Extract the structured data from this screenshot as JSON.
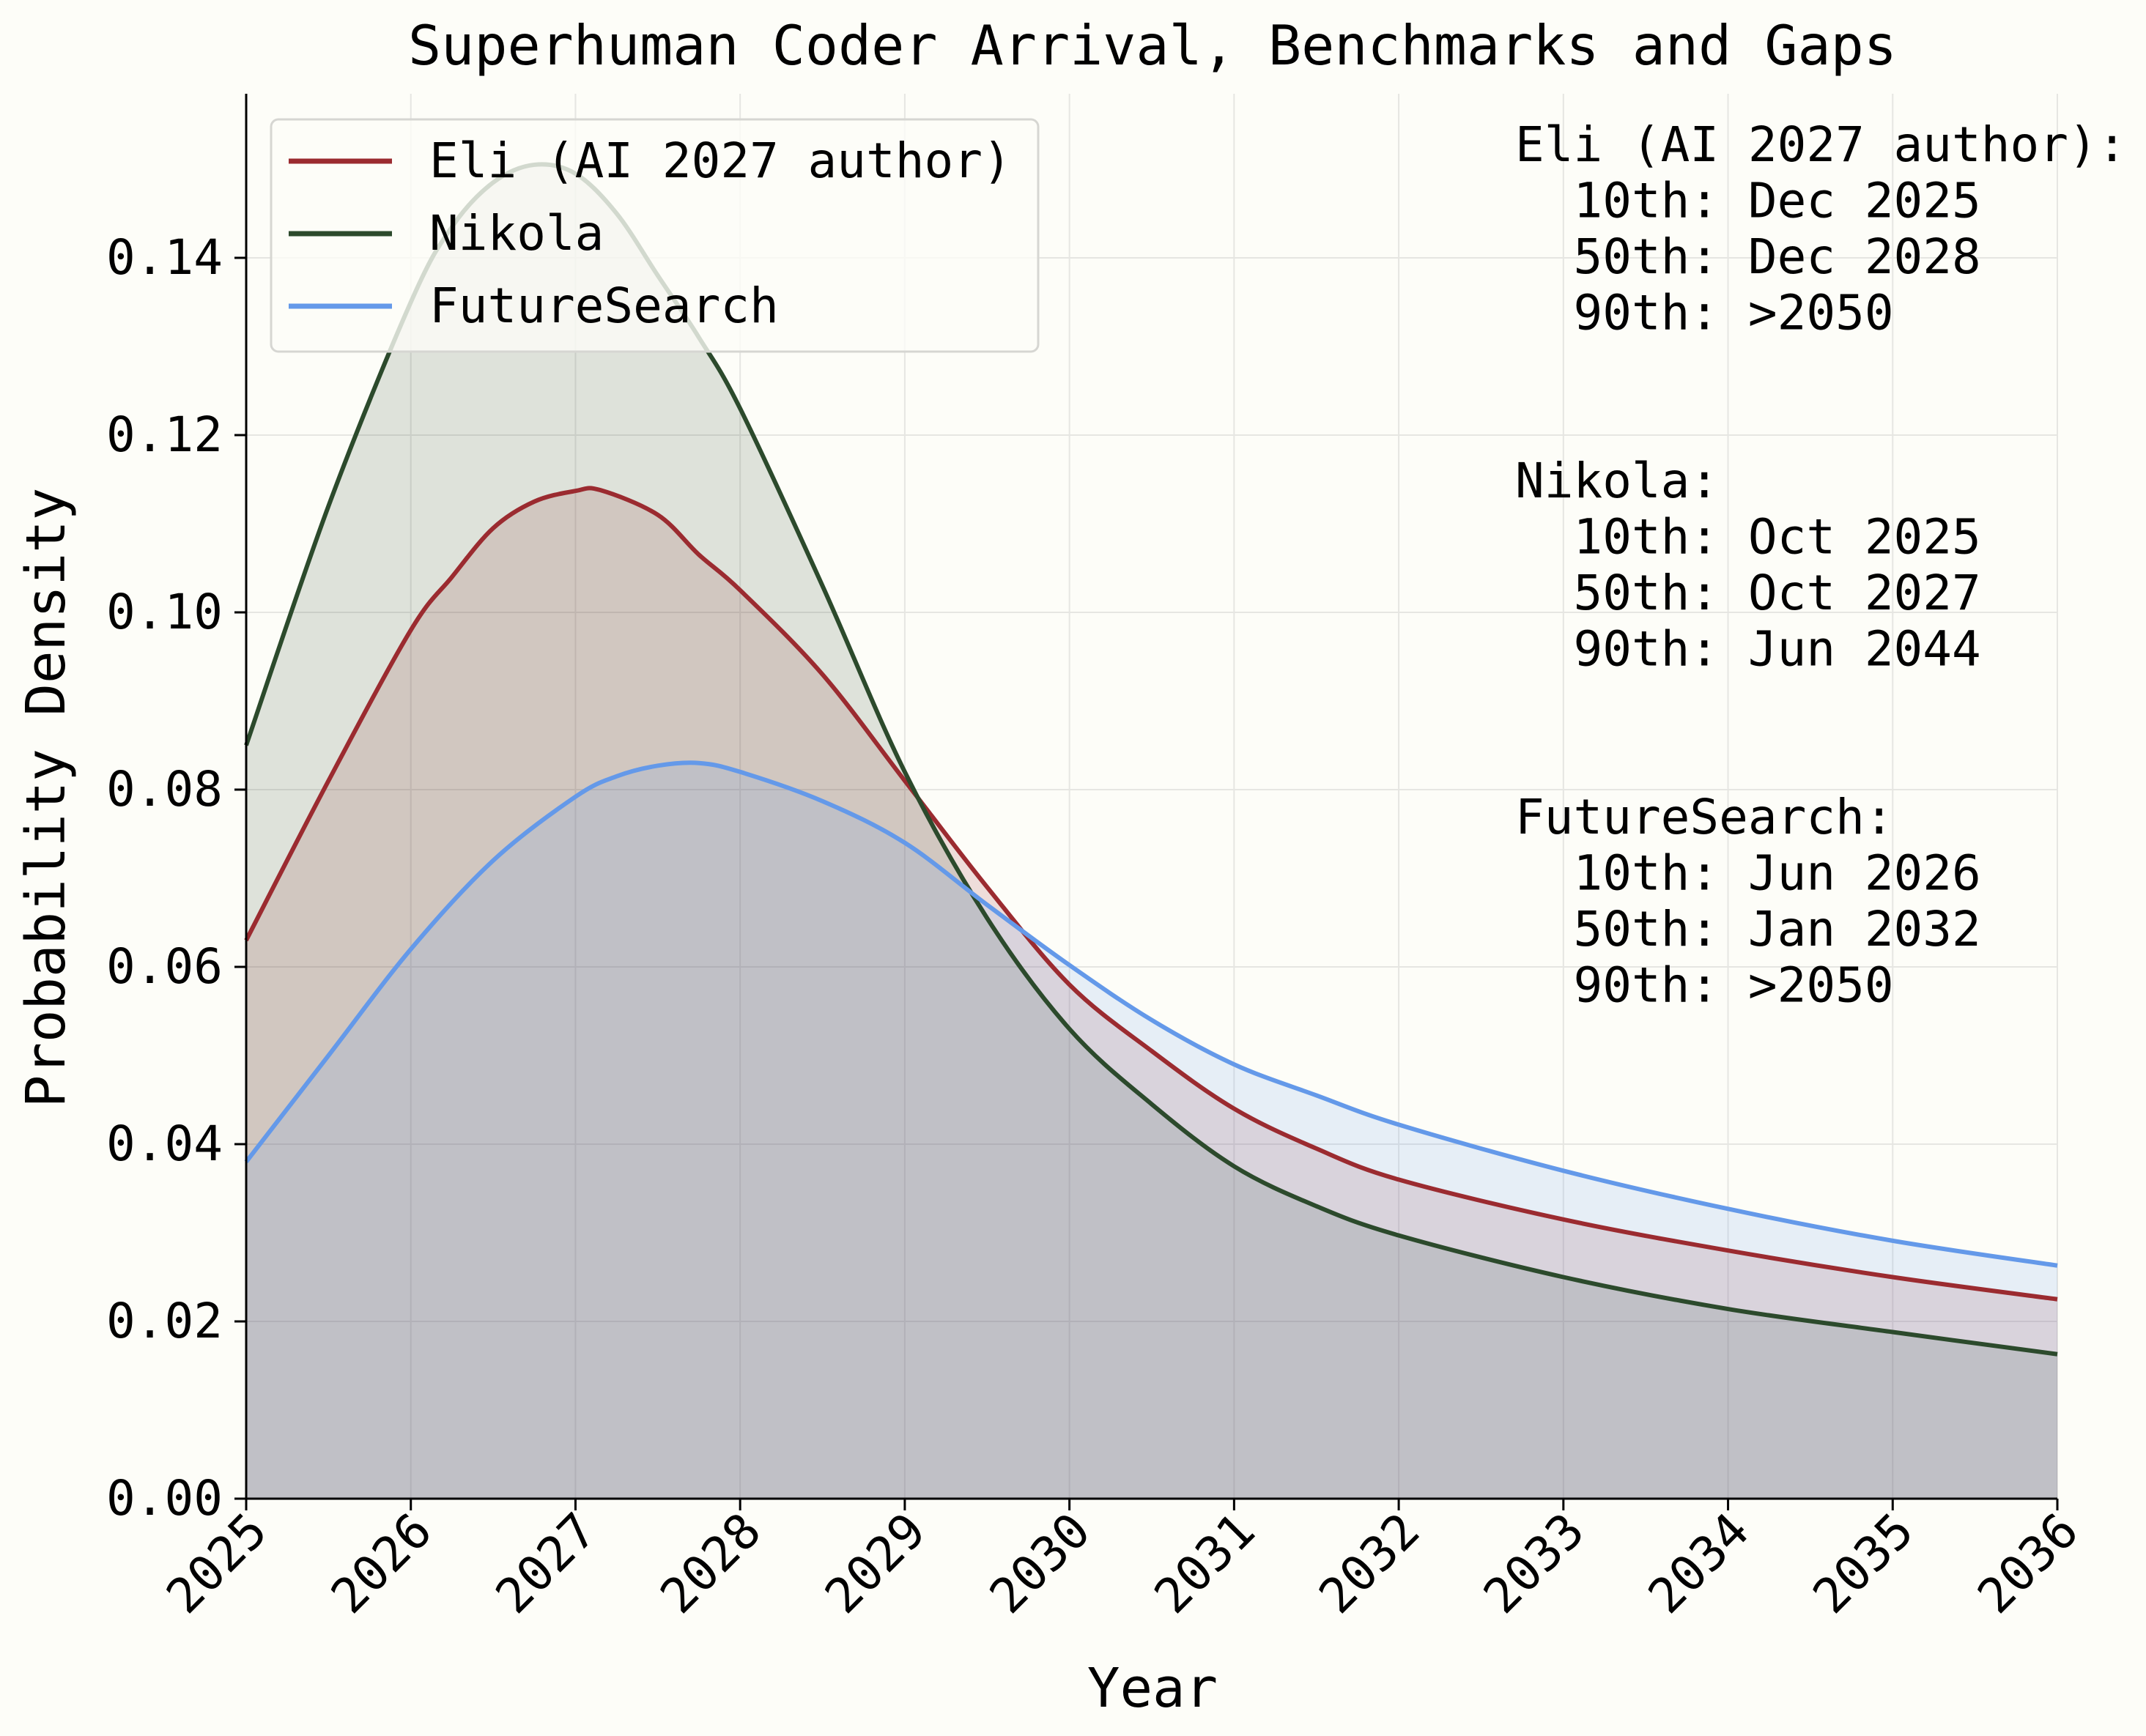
{
  "chart_data": {
    "type": "area",
    "title": "Superhuman Coder Arrival, Benchmarks and Gaps",
    "xlabel": "Year",
    "ylabel": "Probability Density",
    "xlim": [
      2025,
      2036
    ],
    "ylim": [
      0,
      0.158
    ],
    "xticks": [
      "2025",
      "2026",
      "2027",
      "2028",
      "2029",
      "2030",
      "2031",
      "2032",
      "2033",
      "2034",
      "2035",
      "2036"
    ],
    "yticks": [
      "0.00",
      "0.02",
      "0.04",
      "0.06",
      "0.08",
      "0.10",
      "0.12",
      "0.14"
    ],
    "grid": true,
    "legend_position": "top-left",
    "background": "#fdfdf8",
    "series": [
      {
        "name": "Eli (AI 2027 author)",
        "color": "#9b2b30",
        "x": [
          2025,
          2025.5,
          2026,
          2026.25,
          2026.5,
          2026.75,
          2027,
          2027.15,
          2027.5,
          2027.75,
          2028,
          2028.5,
          2029,
          2029.5,
          2030,
          2030.5,
          2031,
          2031.5,
          2032,
          2033,
          2034,
          2035,
          2036
        ],
        "y": [
          0.063,
          0.081,
          0.098,
          0.104,
          0.1095,
          0.1125,
          0.1137,
          0.1138,
          0.111,
          0.1065,
          0.1025,
          0.093,
          0.081,
          0.069,
          0.058,
          0.0505,
          0.044,
          0.0395,
          0.036,
          0.0315,
          0.028,
          0.025,
          0.0225
        ]
      },
      {
        "name": "Nikola",
        "color": "#2c4a2c",
        "x": [
          2025,
          2025.5,
          2026,
          2026.25,
          2026.5,
          2026.75,
          2027,
          2027.25,
          2027.5,
          2027.75,
          2028,
          2028.5,
          2029,
          2029.5,
          2030,
          2030.5,
          2031,
          2031.5,
          2032,
          2033,
          2034,
          2035,
          2036
        ],
        "y": [
          0.085,
          0.112,
          0.135,
          0.1435,
          0.1485,
          0.1505,
          0.1495,
          0.145,
          0.138,
          0.131,
          0.123,
          0.103,
          0.082,
          0.0655,
          0.053,
          0.0445,
          0.0375,
          0.033,
          0.0297,
          0.025,
          0.0214,
          0.0188,
          0.0163
        ]
      },
      {
        "name": "FutureSearch",
        "color": "#6499e9",
        "x": [
          2025,
          2025.5,
          2026,
          2026.5,
          2027,
          2027.25,
          2027.5,
          2027.75,
          2028,
          2028.5,
          2029,
          2029.5,
          2030,
          2030.5,
          2031,
          2031.5,
          2032,
          2033,
          2034,
          2035,
          2036
        ],
        "y": [
          0.038,
          0.05,
          0.062,
          0.072,
          0.0792,
          0.0815,
          0.0827,
          0.083,
          0.082,
          0.0787,
          0.074,
          0.067,
          0.0602,
          0.054,
          0.049,
          0.0455,
          0.0422,
          0.037,
          0.0327,
          0.0291,
          0.0263
        ]
      }
    ],
    "annotations": [
      {
        "lines": [
          "Eli (AI 2027 author):",
          "  10th: Dec 2025",
          "  50th: Dec 2028",
          "  90th: >2050"
        ]
      },
      {
        "lines": [
          "Nikola:",
          "  10th: Oct 2025",
          "  50th: Oct 2027",
          "  90th: Jun 2044"
        ]
      },
      {
        "lines": [
          "FutureSearch:",
          "  10th: Jun 2026",
          "  50th: Jan 2032",
          "  90th: >2050"
        ]
      }
    ]
  }
}
